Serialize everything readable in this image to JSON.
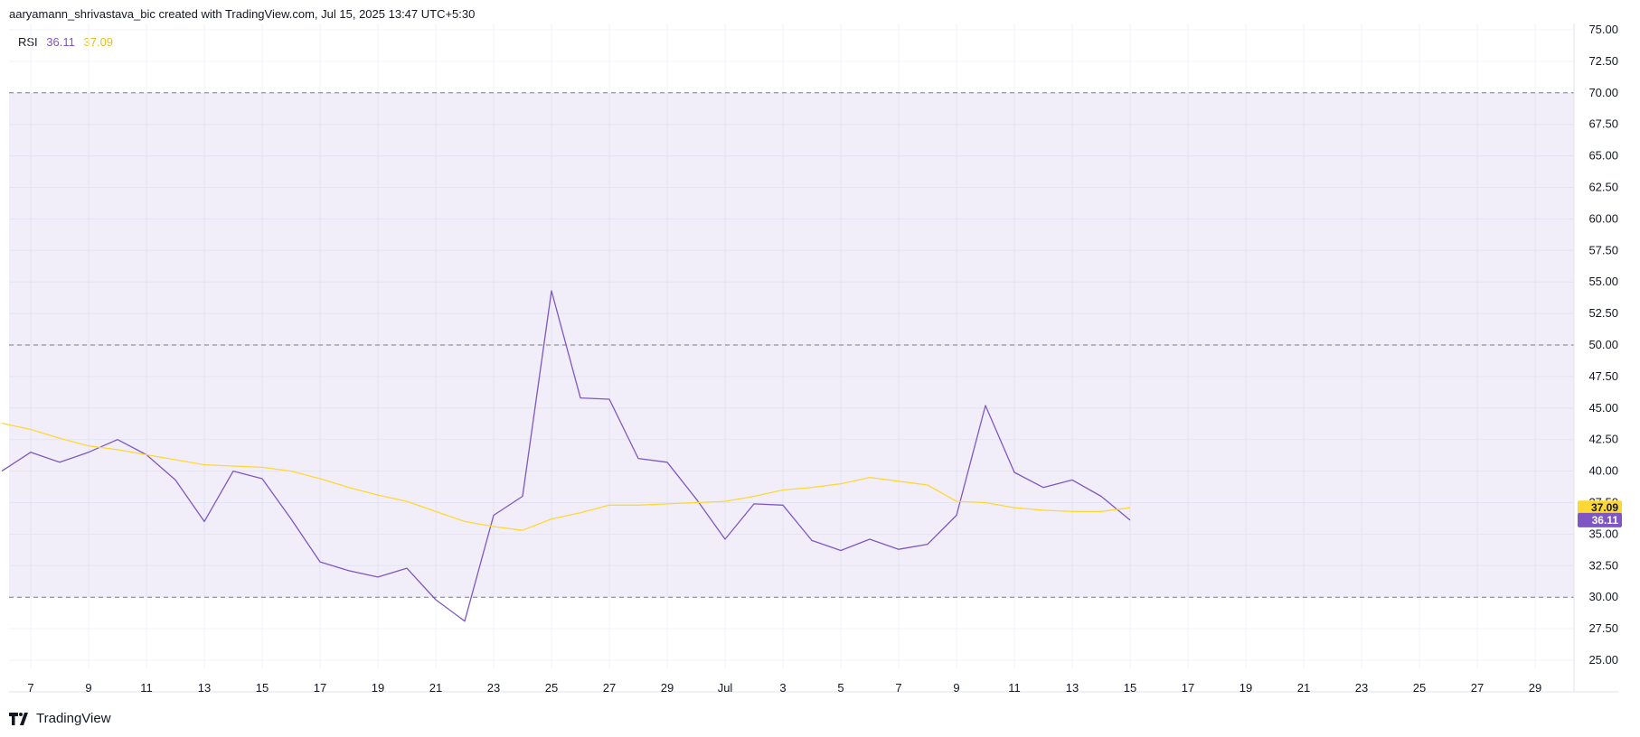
{
  "header": {
    "text": "aaryamann_shrivastava_bic created with TradingView.com, Jul 15, 2025 13:47 UTC+5:30"
  },
  "legend": {
    "name": "RSI",
    "rsi_value": "36.11",
    "ma_value": "37.09"
  },
  "footer": {
    "brand": "TradingView"
  },
  "colors": {
    "rsi": "#7e57c2",
    "ma": "#fdd835",
    "band_fill": "#7e57c2",
    "band_lines": "#787b86",
    "grid": "#f0f3fa"
  },
  "chart_data": {
    "type": "line",
    "ylim": [
      25,
      75
    ],
    "y_ticks": [
      "75.00",
      "72.50",
      "70.00",
      "67.50",
      "65.00",
      "62.50",
      "60.00",
      "57.50",
      "55.00",
      "52.50",
      "50.00",
      "47.50",
      "45.00",
      "42.50",
      "40.00",
      "37.50",
      "35.00",
      "32.50",
      "30.00",
      "27.50",
      "25.00"
    ],
    "x_ticks": [
      "7",
      "9",
      "11",
      "13",
      "15",
      "17",
      "19",
      "21",
      "23",
      "25",
      "27",
      "29",
      "Jul",
      "3",
      "5",
      "7",
      "9",
      "11",
      "13",
      "15",
      "17",
      "19",
      "21",
      "23",
      "25",
      "27",
      "29"
    ],
    "x_range": [
      "2025-06-06",
      "2025-07-31"
    ],
    "x": [
      "2025-06-06",
      "2025-06-07",
      "2025-06-08",
      "2025-06-09",
      "2025-06-10",
      "2025-06-11",
      "2025-06-12",
      "2025-06-13",
      "2025-06-14",
      "2025-06-15",
      "2025-06-16",
      "2025-06-17",
      "2025-06-18",
      "2025-06-19",
      "2025-06-20",
      "2025-06-21",
      "2025-06-22",
      "2025-06-23",
      "2025-06-24",
      "2025-06-25",
      "2025-06-26",
      "2025-06-27",
      "2025-06-28",
      "2025-06-29",
      "2025-06-30",
      "2025-07-01",
      "2025-07-02",
      "2025-07-03",
      "2025-07-04",
      "2025-07-05",
      "2025-07-06",
      "2025-07-07",
      "2025-07-08",
      "2025-07-09",
      "2025-07-10",
      "2025-07-11",
      "2025-07-12",
      "2025-07-13",
      "2025-07-14",
      "2025-07-15"
    ],
    "bands": {
      "upper": 70,
      "middle": 50,
      "lower": 30
    },
    "series": [
      {
        "name": "RSI",
        "values": [
          40.0,
          41.5,
          40.7,
          41.5,
          42.5,
          41.3,
          39.3,
          36.0,
          40.0,
          39.4,
          36.2,
          32.8,
          32.1,
          31.6,
          32.3,
          29.8,
          28.1,
          36.5,
          38.0,
          54.3,
          45.8,
          45.7,
          41.0,
          40.7,
          37.8,
          34.6,
          37.4,
          37.3,
          34.5,
          33.7,
          34.6,
          33.8,
          34.2,
          36.5,
          45.2,
          39.9,
          38.7,
          39.3,
          38.0,
          36.11
        ]
      },
      {
        "name": "RSI-based MA",
        "values": [
          43.8,
          43.3,
          42.6,
          42.0,
          41.7,
          41.3,
          40.9,
          40.5,
          40.4,
          40.3,
          40.0,
          39.4,
          38.7,
          38.1,
          37.6,
          36.8,
          36.0,
          35.6,
          35.3,
          36.2,
          36.7,
          37.3,
          37.3,
          37.4,
          37.5,
          37.6,
          38.0,
          38.5,
          38.7,
          39.0,
          39.5,
          39.2,
          38.9,
          37.6,
          37.5,
          37.1,
          36.9,
          36.8,
          36.8,
          37.09
        ]
      }
    ]
  }
}
